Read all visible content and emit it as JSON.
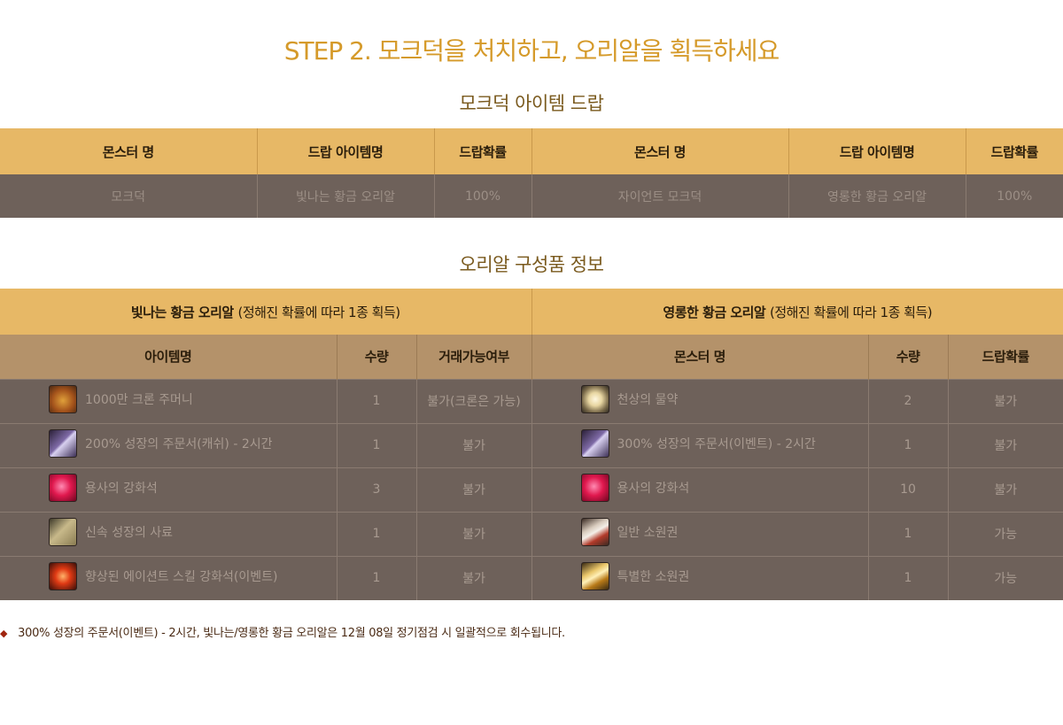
{
  "step_title": "STEP 2. 모크덕을 처치하고, 오리알을 획득하세요",
  "drop_section": {
    "title": "모크덕 아이템 드랍",
    "headers": [
      "몬스터 명",
      "드랍 아이템명",
      "드랍확률",
      "몬스터 명",
      "드랍 아이템명",
      "드랍확률"
    ],
    "row": [
      "모크덕",
      "빛나는 황금 오리알",
      "100%",
      "자이언트 모크덕",
      "영롱한 황금 오리알",
      "100%"
    ]
  },
  "composition_section": {
    "title": "오리알 구성품 정보",
    "left_group": {
      "name": "빛나는 황금 오리알",
      "note": "(정해진 확률에 따라 1종 획득)"
    },
    "right_group": {
      "name": "영롱한 황금 오리알",
      "note": "(정해진 확률에 따라 1종 획득)"
    },
    "left_headers": [
      "아이템명",
      "수량",
      "거래가능여부"
    ],
    "right_headers": [
      "몬스터 명",
      "수량",
      "드랍확률"
    ],
    "left_items": [
      {
        "name": "1000만 크론 주머니",
        "qty": "1",
        "trade": "불가(크론은 가능)",
        "icon": "coin-pouch-icon"
      },
      {
        "name": "200% 성장의 주문서(캐쉬) - 2시간",
        "qty": "1",
        "trade": "불가",
        "icon": "scroll-icon"
      },
      {
        "name": "용사의 강화석",
        "qty": "3",
        "trade": "불가",
        "icon": "ruby-stone-icon"
      },
      {
        "name": "신속 성장의 사료",
        "qty": "1",
        "trade": "불가",
        "icon": "feed-bag-icon"
      },
      {
        "name": "향상된 에이션트 스킬 강화석(이벤트)",
        "qty": "1",
        "trade": "불가",
        "icon": "fire-stone-icon"
      }
    ],
    "right_items": [
      {
        "name": "천상의 물약",
        "qty": "2",
        "trade": "불가",
        "icon": "potion-orb-icon"
      },
      {
        "name": "300% 성장의 주문서(이벤트) - 2시간",
        "qty": "1",
        "trade": "불가",
        "icon": "scroll-icon"
      },
      {
        "name": "용사의 강화석",
        "qty": "10",
        "trade": "불가",
        "icon": "ruby-stone-icon"
      },
      {
        "name": "일반 소원권",
        "qty": "1",
        "trade": "가능",
        "icon": "ticket-icon"
      },
      {
        "name": "특별한 소원권",
        "qty": "1",
        "trade": "가능",
        "icon": "gold-ticket-icon"
      }
    ]
  },
  "footnote": "300% 성장의 주문서(이벤트)  - 2시간, 빛나는/영롱한 황금 오리알은 12월 08일 정기점검 시 일괄적으로 회수됩니다.",
  "footnote_bullet": "◆",
  "colors": {
    "title_gold": "#d59a2a",
    "section_title": "#7a5a1e",
    "header_gold": "#e7b866",
    "subheader_tan": "#b4926a",
    "row_brown": "#6e615a",
    "row_text": "#a89a90",
    "footnote_text": "#4a2a14",
    "bullet_red": "#a0240f"
  }
}
